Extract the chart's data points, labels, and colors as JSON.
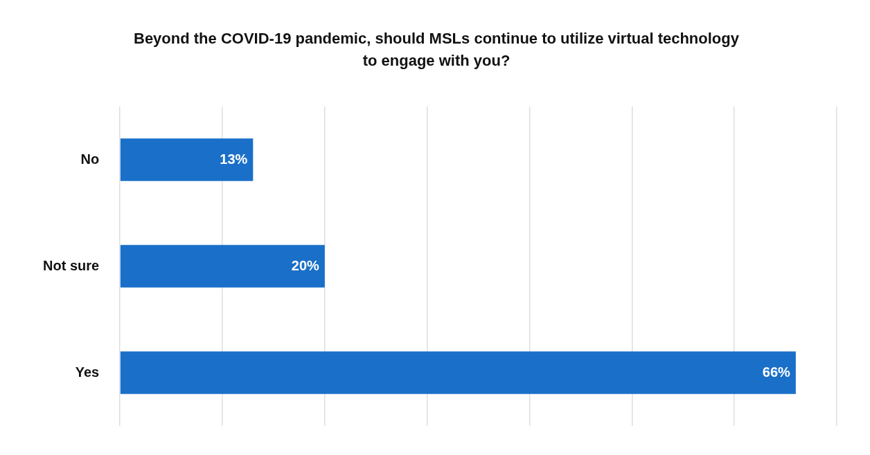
{
  "chart_data": {
    "type": "bar",
    "orientation": "horizontal",
    "title": "Beyond the COVID-19 pandemic, should MSLs continue to utilize virtual technology to engage with you?",
    "categories": [
      "No",
      "Not sure",
      "Yes"
    ],
    "values": [
      13,
      20,
      66
    ],
    "value_labels": [
      "13%",
      "20%",
      "66%"
    ],
    "color": "#1a6fc9",
    "xlim": [
      0,
      70
    ],
    "xticks": [
      {
        "value": 0,
        "label": null
      },
      {
        "value": 10,
        "label": null
      },
      {
        "value": 20,
        "label": null
      },
      {
        "value": 30,
        "label": null
      },
      {
        "value": 40,
        "label": null
      },
      {
        "value": 50,
        "label": null
      },
      {
        "value": 60,
        "label": null
      },
      {
        "value": 70,
        "label": null
      }
    ],
    "grid": "x",
    "tick_labels": "y",
    "legend": false
  }
}
